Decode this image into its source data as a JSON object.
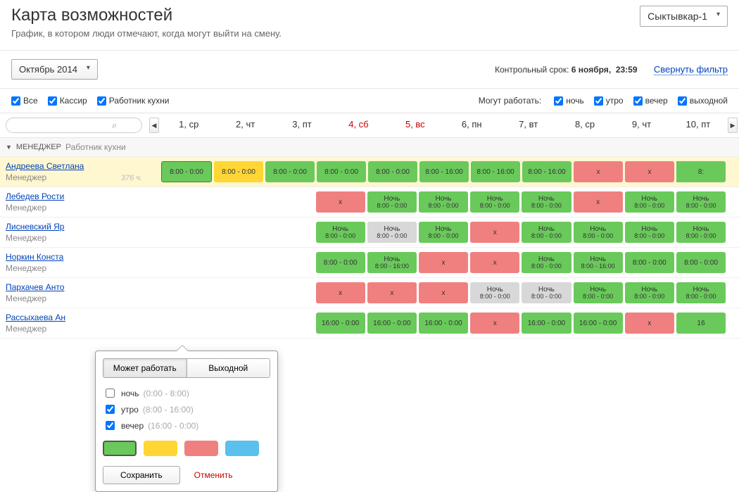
{
  "page": {
    "title": "Карта возможностей",
    "subtitle": "График, в котором люди отмечают, когда могут выйти на смену."
  },
  "location": {
    "selected": "Сыктывкар-1"
  },
  "period": {
    "selected": "Октябрь 2014"
  },
  "deadline": {
    "label": "Контрольный срок:",
    "date": "6 ноября,",
    "time": "23:59"
  },
  "foldFilter": "Свернуть фильтр",
  "roleFilters": {
    "all": "Все",
    "cashier": "Кассир",
    "kitchen": "Работник кухни"
  },
  "shiftFilterLabel": "Могут работать:",
  "shiftFilters": {
    "night": "ночь",
    "morning": "утро",
    "evening": "вечер",
    "dayoff": "выходной"
  },
  "days": [
    {
      "label": "1, ср",
      "weekend": false
    },
    {
      "label": "2, чт",
      "weekend": false
    },
    {
      "label": "3, пт",
      "weekend": false
    },
    {
      "label": "4, сб",
      "weekend": true
    },
    {
      "label": "5, вс",
      "weekend": true
    },
    {
      "label": "6, пн",
      "weekend": false
    },
    {
      "label": "7, вт",
      "weekend": false
    },
    {
      "label": "8, ср",
      "weekend": false
    },
    {
      "label": "9, чт",
      "weekend": false
    },
    {
      "label": "10, пт",
      "weekend": false
    }
  ],
  "group": {
    "name": "МЕНЕДЖЕР",
    "sub": "Работник кухни"
  },
  "colors": {
    "green": "#6ac95b",
    "yellow": "#ffd633",
    "red": "#f08080",
    "gray": "#d8d8d8",
    "blue": "#5bc0eb",
    "highlight": "#fff7d0"
  },
  "people": [
    {
      "name": "Андреева Светлана",
      "role": "Менеджер",
      "hours": "376 ч.",
      "highlight": true,
      "cells": [
        {
          "c": "green-b",
          "t1": "8:00 - 0:00"
        },
        {
          "c": "yellow",
          "t1": "8:00 - 0:00"
        },
        {
          "c": "green",
          "t1": "8:00 - 0:00"
        },
        {
          "c": "green",
          "t1": "8:00 - 0:00"
        },
        {
          "c": "green",
          "t1": "8:00 - 0:00"
        },
        {
          "c": "green",
          "t1": "8:00 - 16:00"
        },
        {
          "c": "green",
          "t1": "8:00 - 16:00"
        },
        {
          "c": "green",
          "t1": "8:00 - 16:00"
        },
        {
          "c": "red",
          "t1": "x"
        },
        {
          "c": "red",
          "t1": "x"
        },
        {
          "c": "cut",
          "t1": "8:"
        }
      ]
    },
    {
      "name": "Лебедев Рости",
      "role": "Менеджер",
      "cells": [
        null,
        null,
        null,
        {
          "c": "red",
          "t1": "x"
        },
        {
          "c": "green",
          "t1": "Ночь",
          "t2": "8:00 - 0:00"
        },
        {
          "c": "green",
          "t1": "Ночь",
          "t2": "8:00 - 0:00"
        },
        {
          "c": "green",
          "t1": "Ночь",
          "t2": "8:00 - 0:00"
        },
        {
          "c": "green",
          "t1": "Ночь",
          "t2": "8:00 - 0:00"
        },
        {
          "c": "red",
          "t1": "x"
        },
        {
          "c": "green",
          "t1": "Ночь",
          "t2": "8:00 - 0:00"
        },
        {
          "c": "green",
          "t1": "Ночь",
          "t2": "8:00 - 0:00"
        }
      ]
    },
    {
      "name": "Лисневский Яр",
      "role": "Менеджер",
      "cells": [
        null,
        null,
        null,
        {
          "c": "green",
          "t1": "Ночь",
          "t2": "8:00 - 0:00"
        },
        {
          "c": "gray",
          "t1": "Ночь",
          "t2": "8:00 - 0:00"
        },
        {
          "c": "green",
          "t1": "Ночь",
          "t2": "8:00 - 0:00"
        },
        {
          "c": "red",
          "t1": "x"
        },
        {
          "c": "green",
          "t1": "Ночь",
          "t2": "8:00 - 0:00"
        },
        {
          "c": "green",
          "t1": "Ночь",
          "t2": "8:00 - 0:00"
        },
        {
          "c": "green",
          "t1": "Ночь",
          "t2": "8:00 - 0:00"
        },
        {
          "c": "green",
          "t1": "Ночь",
          "t2": "8:00 - 0:00"
        }
      ]
    },
    {
      "name": "Норкин Конста",
      "role": "Менеджер",
      "cells": [
        null,
        null,
        null,
        {
          "c": "green",
          "t1": "8:00 - 0:00"
        },
        {
          "c": "green",
          "t1": "Ночь",
          "t2": "8:00 - 16:00"
        },
        {
          "c": "red",
          "t1": "x"
        },
        {
          "c": "red",
          "t1": "x"
        },
        {
          "c": "green",
          "t1": "Ночь",
          "t2": "8:00 - 0:00"
        },
        {
          "c": "green",
          "t1": "Ночь",
          "t2": "8:00 - 16:00"
        },
        {
          "c": "green",
          "t1": "8:00 - 0:00"
        },
        {
          "c": "green",
          "t1": "8:00 - 0:00"
        }
      ]
    },
    {
      "name": "Пархачев Анто",
      "role": "Менеджер",
      "cells": [
        null,
        null,
        null,
        {
          "c": "red",
          "t1": "x"
        },
        {
          "c": "red",
          "t1": "x"
        },
        {
          "c": "red",
          "t1": "x"
        },
        {
          "c": "gray",
          "t1": "Ночь",
          "t2": "8:00 - 0:00"
        },
        {
          "c": "gray",
          "t1": "Ночь",
          "t2": "8:00 - 0:00"
        },
        {
          "c": "green",
          "t1": "Ночь",
          "t2": "8:00 - 0:00"
        },
        {
          "c": "green",
          "t1": "Ночь",
          "t2": "8:00 - 0:00"
        },
        {
          "c": "green",
          "t1": "Ночь",
          "t2": "8:00 - 0:00"
        }
      ]
    },
    {
      "name": "Рассыхаева Ан",
      "role": "Менеджер",
      "cells": [
        null,
        null,
        null,
        {
          "c": "green",
          "t1": "16:00 - 0:00"
        },
        {
          "c": "green",
          "t1": "16:00 - 0:00"
        },
        {
          "c": "green",
          "t1": "16:00 - 0:00"
        },
        {
          "c": "red",
          "t1": "x"
        },
        {
          "c": "green",
          "t1": "16:00 - 0:00"
        },
        {
          "c": "green",
          "t1": "16:00 - 0:00"
        },
        {
          "c": "red",
          "t1": "x"
        },
        {
          "c": "green",
          "t1": "16"
        }
      ]
    }
  ],
  "popup": {
    "tabWork": "Может работать",
    "tabOff": "Выходной",
    "optNight": "ночь",
    "rangeNight": "(0:00 - 8:00)",
    "optMorning": "утро",
    "rangeMorning": "(8:00 - 16:00)",
    "optEvening": "вечер",
    "rangeEvening": "(16:00 - 0:00)",
    "save": "Сохранить",
    "cancel": "Отменить"
  }
}
